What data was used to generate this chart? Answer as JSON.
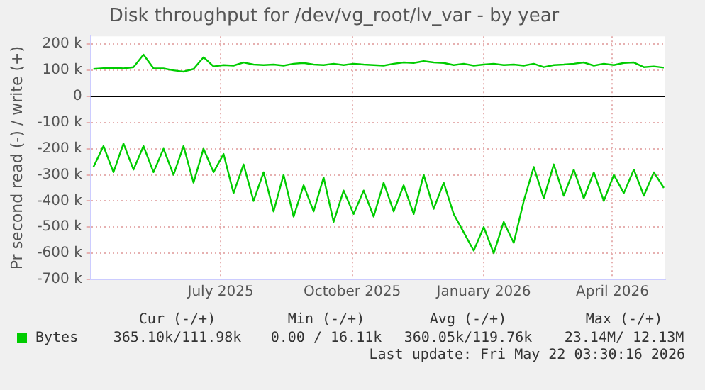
{
  "chart_data": {
    "type": "line",
    "title": "Disk throughput for /dev/vg_root/lv_var - by year",
    "ylabel": "Pr second read (-) / write (+)",
    "x": [
      "2025-04-03",
      "2025-04-10",
      "2025-04-17",
      "2025-04-24",
      "2025-05-01",
      "2025-05-08",
      "2025-05-15",
      "2025-05-22",
      "2025-05-29",
      "2025-06-05",
      "2025-06-12",
      "2025-06-19",
      "2025-06-26",
      "2025-07-03",
      "2025-07-10",
      "2025-07-17",
      "2025-07-24",
      "2025-07-31",
      "2025-08-07",
      "2025-08-14",
      "2025-08-21",
      "2025-08-28",
      "2025-09-04",
      "2025-09-11",
      "2025-09-18",
      "2025-09-25",
      "2025-10-02",
      "2025-10-09",
      "2025-10-16",
      "2025-10-23",
      "2025-10-30",
      "2025-11-06",
      "2025-11-13",
      "2025-11-20",
      "2025-11-27",
      "2025-12-04",
      "2025-12-11",
      "2025-12-18",
      "2025-12-25",
      "2026-01-01",
      "2026-01-08",
      "2026-01-15",
      "2026-01-22",
      "2026-01-29",
      "2026-02-05",
      "2026-02-12",
      "2026-02-19",
      "2026-02-26",
      "2026-03-05",
      "2026-03-12",
      "2026-03-19",
      "2026-03-26",
      "2026-04-02",
      "2026-04-09",
      "2026-04-16",
      "2026-04-23",
      "2026-04-30",
      "2026-05-07"
    ],
    "series": [
      {
        "name": "Bytes",
        "color": "#00cc00",
        "values": [
          105000,
          108000,
          110000,
          107000,
          112000,
          160000,
          108000,
          107000,
          100000,
          95000,
          105000,
          150000,
          115000,
          120000,
          118000,
          130000,
          122000,
          120000,
          122000,
          118000,
          125000,
          128000,
          122000,
          120000,
          125000,
          120000,
          125000,
          122000,
          120000,
          118000,
          125000,
          130000,
          128000,
          135000,
          130000,
          128000,
          120000,
          125000,
          118000,
          122000,
          125000,
          120000,
          122000,
          118000,
          125000,
          112000,
          120000,
          122000,
          125000,
          130000,
          118000,
          125000,
          120000,
          128000,
          130000,
          112000,
          115000,
          110000
        ]
      },
      {
        "color": "#00cc00",
        "values": [
          -270000,
          -190000,
          -290000,
          -180000,
          -280000,
          -190000,
          -290000,
          -200000,
          -300000,
          -190000,
          -330000,
          -200000,
          -290000,
          -220000,
          -370000,
          -260000,
          -400000,
          -290000,
          -440000,
          -300000,
          -460000,
          -340000,
          -440000,
          -310000,
          -480000,
          -360000,
          -450000,
          -360000,
          -460000,
          -330000,
          -440000,
          -340000,
          -450000,
          -300000,
          -430000,
          -330000,
          -450000,
          -520000,
          -590000,
          -500000,
          -600000,
          -480000,
          -560000,
          -400000,
          -270000,
          -390000,
          -260000,
          -380000,
          -280000,
          -390000,
          -290000,
          -400000,
          -300000,
          -370000,
          -280000,
          -380000,
          -290000,
          -350000
        ]
      }
    ],
    "xlim": [
      "2025-04-01",
      "2026-05-08"
    ],
    "xticks": [
      {
        "value": "2025-07-01",
        "label": "July 2025"
      },
      {
        "value": "2025-10-01",
        "label": "October 2025"
      },
      {
        "value": "2026-01-01",
        "label": "January 2026"
      },
      {
        "value": "2026-04-01",
        "label": "April 2026"
      }
    ],
    "ylim": [
      -700000,
      230000
    ],
    "yticks": [
      {
        "value": 200000,
        "label": "200 k"
      },
      {
        "value": 100000,
        "label": "100 k"
      },
      0,
      {
        "value": -100000,
        "label": "-100 k"
      },
      {
        "value": -200000,
        "label": "-200 k"
      },
      {
        "value": -300000,
        "label": "-300 k"
      },
      {
        "value": -400000,
        "label": "-400 k"
      },
      {
        "value": -500000,
        "label": "-500 k"
      },
      {
        "value": -600000,
        "label": "-600 k"
      },
      {
        "value": -700000,
        "label": "-700 k"
      }
    ],
    "ref_lines": [
      {
        "axis": "y",
        "value": 0,
        "color": "#000000"
      }
    ],
    "grid": true,
    "legend": "bottom",
    "marker": "none",
    "line_style": "solid",
    "annotations": [
      "Cur (-/+)",
      "Min (-/+)",
      "Avg (-/+)",
      "Max (-/+)",
      "365.10k/111.98k",
      "0.00 / 16.11k",
      "360.05k/119.76k",
      "23.14M/ 12.13M",
      "Last update: Fri May 22 03:30:16 2026"
    ]
  }
}
